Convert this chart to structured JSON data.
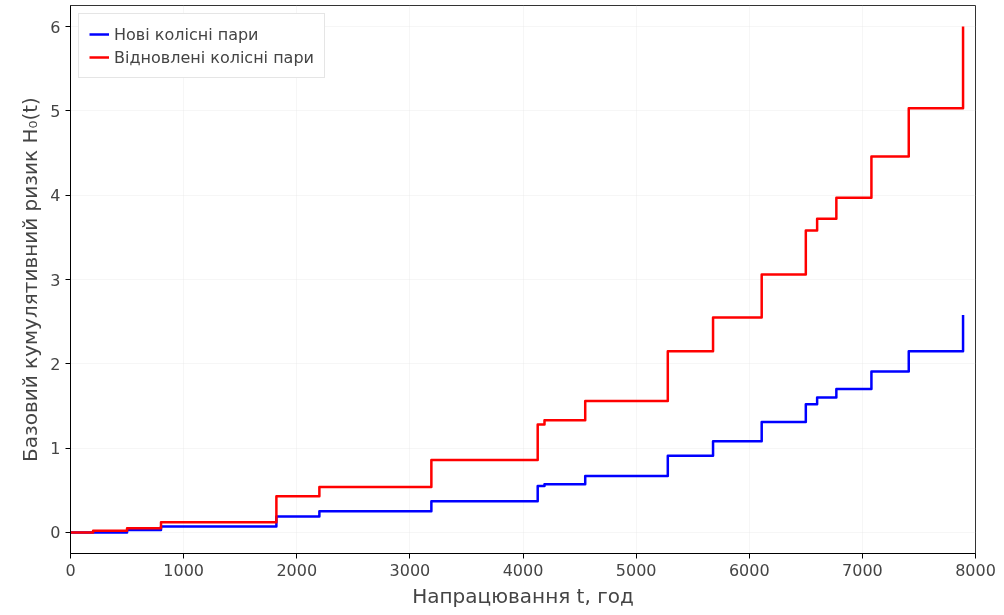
{
  "chart_data": {
    "type": "step",
    "xlabel": "Напрацювання t, год",
    "ylabel": "Базовий кумулятивний ризик H₀(t)",
    "xlim": [
      0,
      8000
    ],
    "xticks": [
      0,
      1000,
      2000,
      3000,
      4000,
      5000,
      6000,
      7000,
      8000
    ],
    "ylim": [
      -0.25,
      6.25
    ],
    "yticks": [
      0,
      1,
      2,
      3,
      4,
      5,
      6
    ],
    "grid": true,
    "legend": "top left",
    "series": [
      {
        "name": "Нові колісні пари",
        "color": "#0000ff",
        "x": [
          0,
          500,
          800,
          1820,
          2200,
          3190,
          4130,
          4190,
          4550,
          5280,
          5680,
          6110,
          6500,
          6600,
          6770,
          7080,
          7410,
          7890
        ],
        "values": [
          0,
          0.03,
          0.07,
          0.19,
          0.25,
          0.37,
          0.55,
          0.57,
          0.67,
          0.91,
          1.08,
          1.31,
          1.52,
          1.6,
          1.7,
          1.91,
          2.15,
          2.58
        ]
      },
      {
        "name": "Відновлені колісні пари",
        "color": "#ff0000",
        "x": [
          0,
          200,
          500,
          800,
          1820,
          2200,
          3190,
          4130,
          4190,
          4550,
          5280,
          5680,
          6110,
          6500,
          6600,
          6770,
          7080,
          7410,
          7890
        ],
        "values": [
          0,
          0.02,
          0.05,
          0.12,
          0.43,
          0.54,
          0.86,
          1.28,
          1.33,
          1.56,
          2.15,
          2.55,
          3.06,
          3.58,
          3.72,
          3.97,
          4.46,
          5.03,
          6.0
        ]
      }
    ]
  }
}
